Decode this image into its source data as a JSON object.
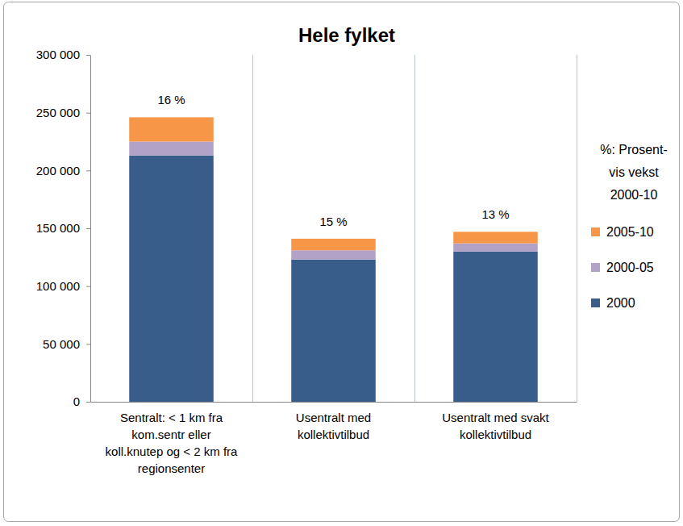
{
  "chart_data": {
    "type": "bar",
    "title": "Hele fylket",
    "categories": [
      "Sentralt: < 1 km fra kom.sentr eller koll.knutep og < 2 km fra regionsenter",
      "Usentralt med kollektivtilbud",
      "Usentralt med svakt kollektivtilbud"
    ],
    "series": [
      {
        "name": "2000",
        "color": "#385d8a",
        "values": [
          213000,
          123000,
          130000
        ]
      },
      {
        "name": "2000-05",
        "color": "#b3a2c7",
        "values": [
          12000,
          8000,
          7000
        ]
      },
      {
        "name": "2005-10",
        "color": "#f79646",
        "values": [
          21000,
          10000,
          10000
        ]
      }
    ],
    "stacked": true,
    "ylim": [
      0,
      300000
    ],
    "yticks": [
      0,
      {
        "value": 50000,
        "label": "50 000"
      },
      {
        "value": 100000,
        "label": "100 000"
      },
      {
        "value": 150000,
        "label": "150 000"
      },
      {
        "value": 200000,
        "label": "200 000"
      },
      {
        "value": 250000,
        "label": "250 000"
      },
      {
        "value": 300000,
        "label": "300 000"
      }
    ],
    "grid": "x",
    "legend": "right",
    "legend_title": [
      "%: Prosent-",
      "vis vekst",
      "2000-10"
    ],
    "annotations": [
      "16 %",
      "15 %",
      "13 %"
    ]
  }
}
